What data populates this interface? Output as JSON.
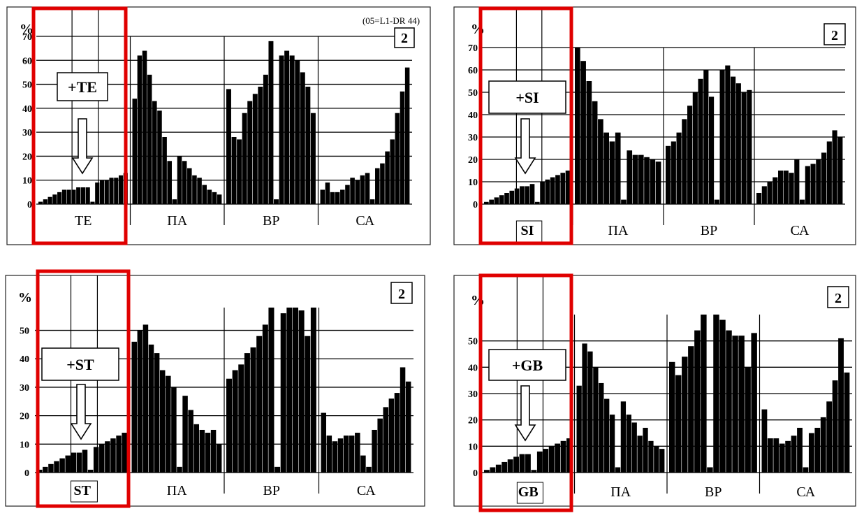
{
  "chart_data": [
    {
      "type": "bar",
      "panel_label": "2",
      "annotation": "(05=L1-DR 44)",
      "ylabel": "%",
      "yticks": [
        "0",
        "10",
        "20",
        "30",
        "40",
        "50",
        "60",
        "70"
      ],
      "ylim": [
        0,
        70
      ],
      "group_labels": [
        "TE",
        "ПА",
        "ВР",
        "СА"
      ],
      "callout": "+TE",
      "highlight_label_boxed": false,
      "label_bold": false,
      "groups": [
        [
          1,
          2,
          3,
          4,
          5,
          6,
          6,
          6,
          7,
          7,
          7,
          1,
          9,
          10,
          10,
          11,
          11,
          12,
          13
        ],
        [
          44,
          62,
          64,
          54,
          43,
          39,
          28,
          18,
          2,
          20,
          18,
          15,
          12,
          11,
          8,
          6,
          5,
          4
        ],
        [
          48,
          28,
          27,
          38,
          43,
          46,
          49,
          54,
          68,
          2,
          62,
          64,
          62,
          60,
          55,
          49,
          38
        ],
        [
          6,
          9,
          5,
          5,
          6,
          8,
          11,
          10,
          12,
          13,
          2,
          15,
          17,
          22,
          27,
          38,
          47,
          57
        ]
      ]
    },
    {
      "type": "bar",
      "panel_label": "2",
      "annotation": "",
      "ylabel": "%",
      "yticks": [
        "0",
        "10",
        "20",
        "30",
        "40",
        "50",
        "60",
        "70"
      ],
      "ylim": [
        0,
        70
      ],
      "group_labels": [
        "SI",
        "ПА",
        "ВР",
        "СА"
      ],
      "callout": "+SI",
      "highlight_label_boxed": true,
      "label_bold": true,
      "groups": [
        [
          1,
          2,
          3,
          4,
          5,
          6,
          7,
          8,
          8,
          9,
          1,
          10,
          11,
          12,
          13,
          14,
          15
        ],
        [
          70,
          64,
          55,
          46,
          38,
          32,
          28,
          32,
          2,
          24,
          22,
          22,
          21,
          20,
          19
        ],
        [
          26,
          28,
          32,
          38,
          44,
          50,
          56,
          60,
          48,
          2,
          60,
          62,
          57,
          54,
          50,
          51
        ],
        [
          5,
          8,
          10,
          12,
          15,
          15,
          14,
          20,
          2,
          17,
          18,
          20,
          23,
          28,
          33,
          30
        ]
      ]
    },
    {
      "type": "bar",
      "panel_label": "2",
      "annotation": "",
      "ylabel": "%",
      "yticks": [
        "0",
        "10",
        "20",
        "30",
        "40",
        "50"
      ],
      "ylim": [
        0,
        58
      ],
      "group_labels": [
        "ST",
        "ПА",
        "ВР",
        "СА"
      ],
      "callout": "+ST",
      "highlight_label_boxed": true,
      "label_bold": true,
      "groups": [
        [
          1,
          2,
          3,
          4,
          5,
          6,
          7,
          7,
          8,
          1,
          9,
          10,
          11,
          12,
          13,
          14
        ],
        [
          46,
          50,
          52,
          45,
          42,
          36,
          34,
          30,
          2,
          27,
          22,
          17,
          15,
          14,
          15,
          10
        ],
        [
          33,
          36,
          38,
          42,
          44,
          48,
          52,
          58,
          2,
          56,
          58,
          58,
          57,
          48,
          58
        ],
        [
          21,
          13,
          11,
          12,
          13,
          13,
          14,
          6,
          2,
          15,
          19,
          23,
          26,
          28,
          37,
          32
        ]
      ]
    },
    {
      "type": "bar",
      "panel_label": "2",
      "annotation": "",
      "ylabel": "%",
      "yticks": [
        "0",
        "10",
        "20",
        "30",
        "40",
        "50"
      ],
      "ylim": [
        0,
        60
      ],
      "group_labels": [
        "GB",
        "ПА",
        "ВР",
        "СА"
      ],
      "callout": "+GB",
      "highlight_label_boxed": true,
      "label_bold": true,
      "groups": [
        [
          1,
          2,
          3,
          4,
          5,
          6,
          7,
          7,
          1,
          8,
          9,
          10,
          11,
          12,
          13
        ],
        [
          33,
          49,
          46,
          40,
          34,
          28,
          22,
          2,
          27,
          22,
          19,
          14,
          17,
          12,
          10,
          9
        ],
        [
          42,
          37,
          44,
          48,
          54,
          60,
          2,
          60,
          58,
          54,
          52,
          52,
          40,
          53
        ],
        [
          24,
          13,
          13,
          11,
          12,
          14,
          17,
          2,
          15,
          17,
          21,
          27,
          35,
          51,
          38
        ]
      ]
    }
  ]
}
